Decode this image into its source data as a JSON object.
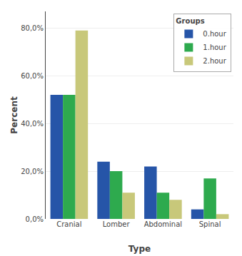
{
  "chart_data": {
    "type": "bar",
    "categories": [
      "Cranial",
      "Lomber",
      "Abdominal",
      "Spinal"
    ],
    "series": [
      {
        "name": "0.hour",
        "color": "#2655a8",
        "values": [
          52,
          24,
          22,
          4
        ]
      },
      {
        "name": "1.hour",
        "color": "#2eaa4e",
        "values": [
          52,
          20,
          11,
          17
        ]
      },
      {
        "name": "2.hour",
        "color": "#c8c87a",
        "values": [
          79,
          11,
          8,
          2
        ]
      }
    ],
    "xlabel": "Type",
    "ylabel": "Percent",
    "ylim": [
      0,
      87
    ],
    "yticks": [
      {
        "value": 0,
        "label": "0,0%"
      },
      {
        "value": 20,
        "label": "20,0%"
      },
      {
        "value": 40,
        "label": "40,0%"
      },
      {
        "value": 60,
        "label": "60,0%"
      },
      {
        "value": 80,
        "label": "80,0%"
      }
    ],
    "legend_title": "Groups",
    "legend": "upper right",
    "grid": true
  }
}
